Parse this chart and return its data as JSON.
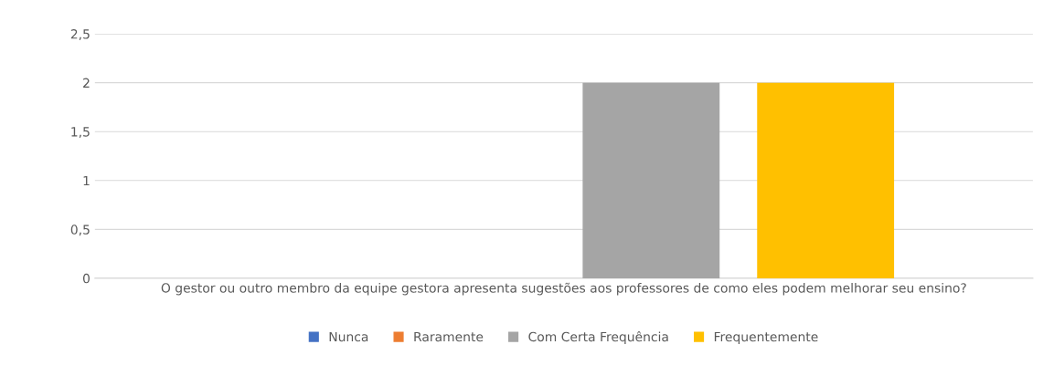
{
  "chart_data": {
    "type": "bar",
    "categories": [
      "O gestor ou outro membro da equipe gestora apresenta sugestões aos professores de como eles podem melhorar seu ensino?"
    ],
    "series": [
      {
        "name": "Nunca",
        "color": "#4472c4",
        "values": [
          0
        ]
      },
      {
        "name": "Raramente",
        "color": "#ed7d31",
        "values": [
          0
        ]
      },
      {
        "name": "Com Certa Frequência",
        "color": "#a5a5a5",
        "values": [
          2
        ]
      },
      {
        "name": "Frequentemente",
        "color": "#ffc000",
        "values": [
          2
        ]
      }
    ],
    "ylim": [
      0,
      2.5
    ],
    "yticks": [
      {
        "value": 0,
        "label": "0"
      },
      {
        "value": 0.5,
        "label": "0,5"
      },
      {
        "value": 1,
        "label": "1"
      },
      {
        "value": 1.5,
        "label": "1,5"
      },
      {
        "value": 2,
        "label": "2"
      },
      {
        "value": 2.5,
        "label": "2,5"
      }
    ],
    "grid": "y",
    "legend": "bottom"
  }
}
